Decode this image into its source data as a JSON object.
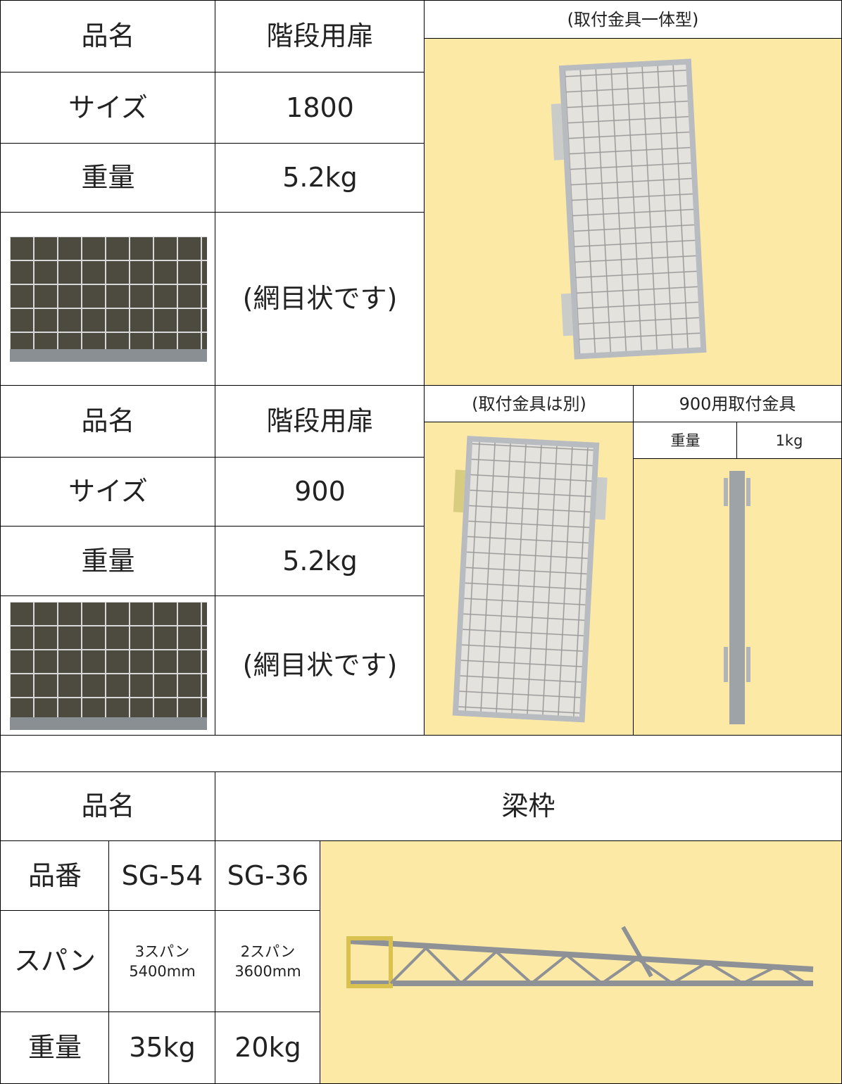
{
  "section1": {
    "rows": [
      [
        "品名",
        "階段用扉"
      ],
      [
        "サイズ",
        "1800"
      ],
      [
        "重量",
        "5.2kg"
      ]
    ],
    "note": "(網目状です)",
    "image_caption": "(取付金具一体型)"
  },
  "section2": {
    "rows": [
      [
        "品名",
        "階段用扉"
      ],
      [
        "サイズ",
        "900"
      ],
      [
        "重量",
        "5.2kg"
      ]
    ],
    "note": "(網目状です)",
    "image_caption": "(取付金具は別)",
    "fitting": {
      "title": "900用取付金具",
      "weight_label": "重量",
      "weight": "1kg"
    }
  },
  "section3": {
    "name_label": "品名",
    "name": "梁枠",
    "rows": [
      [
        "品番",
        "SG-54",
        "SG-36"
      ],
      [
        "スパン",
        "3スパン\n5400mm",
        "2スパン\n3600mm"
      ],
      [
        "重量",
        "35kg",
        "20kg"
      ]
    ]
  }
}
